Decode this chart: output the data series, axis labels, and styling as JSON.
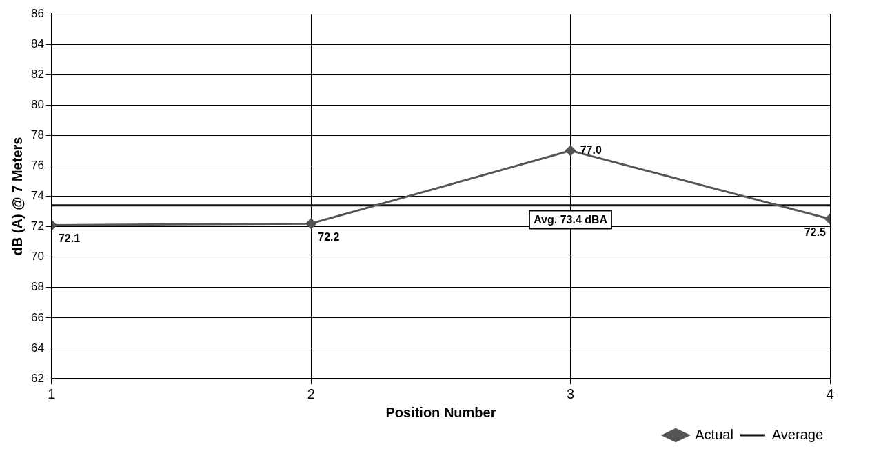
{
  "chart_data": {
    "type": "line",
    "xlabel": "Position Number",
    "ylabel": "dB (A) @ 7 Meters",
    "x": [
      1,
      2,
      3,
      4
    ],
    "xlim": [
      1,
      4
    ],
    "xticks": [
      1,
      2,
      3,
      4
    ],
    "ylim": [
      62,
      86
    ],
    "yticks": [
      62,
      64,
      66,
      68,
      70,
      72,
      74,
      76,
      78,
      80,
      82,
      84,
      86
    ],
    "series": [
      {
        "name": "Actual",
        "color": "#555555",
        "values": [
          72.1,
          72.2,
          77.0,
          72.5
        ],
        "value_labels": [
          "72.1",
          "72.2",
          "77.0",
          "72.5"
        ],
        "marker": "diamond"
      },
      {
        "name": "Average",
        "color": "#111111",
        "values": [
          73.4,
          73.4,
          73.4,
          73.4
        ],
        "marker": "none"
      }
    ],
    "annotations": [
      {
        "text": "Avg. 73.4 dBA",
        "x": 3,
        "y": 73.4
      }
    ],
    "grid": true,
    "legend": "bottom right",
    "line_style": "solid"
  }
}
